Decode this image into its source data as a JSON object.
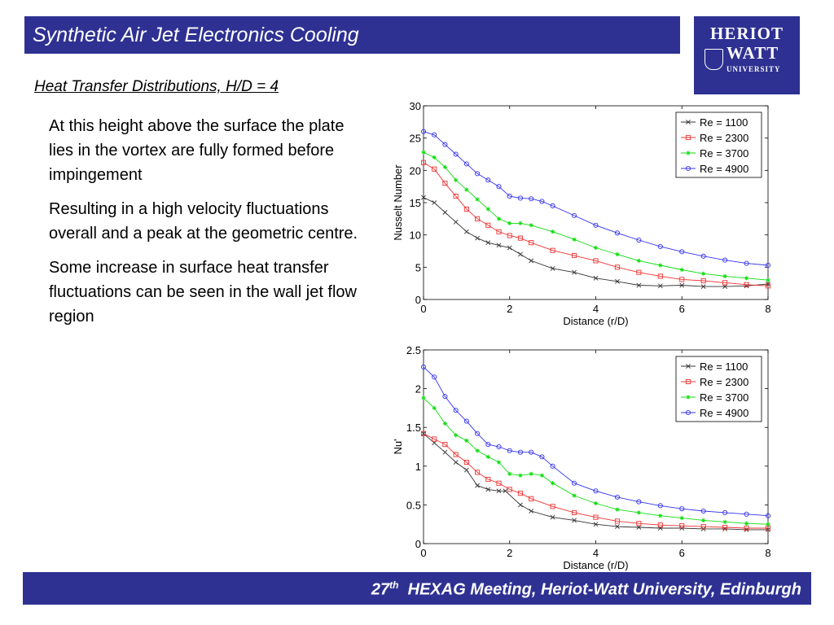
{
  "header": {
    "title": "Synthetic Air Jet Electronics Cooling"
  },
  "logo": {
    "line1": "HERIOT",
    "line2": "WATT",
    "line3": "UNIVERSITY"
  },
  "subtitle": "Heat Transfer Distributions, H/D = 4",
  "body": {
    "paragraphs": [
      "At this height above the surface the plate lies in the vortex are fully formed before impingement",
      "Resulting in a high velocity fluctuations overall and a peak at the geometric centre.",
      "Some increase in surface heat transfer fluctuations can be seen in the wall jet flow region"
    ]
  },
  "footer": {
    "ordinal": "27",
    "suffix": "th",
    "text": "HEXAG Meeting, Heriot-Watt University, Edinburgh"
  },
  "colors": {
    "brand": "#2e3192",
    "re1100": "#333333",
    "re2300": "#ee3333",
    "re3700": "#11dd11",
    "re4900": "#3333ee"
  },
  "chart_data": [
    {
      "type": "line",
      "xlabel": "Distance (r/D)",
      "ylabel": "Nusselt Number",
      "xlim": [
        0,
        8
      ],
      "ylim": [
        0,
        30
      ],
      "xticks": [
        0,
        2,
        4,
        6,
        8
      ],
      "yticks": [
        0,
        5,
        10,
        15,
        20,
        25,
        30
      ],
      "legend_position": "top-right",
      "series": [
        {
          "name": "Re = 1100",
          "marker": "x",
          "color": "#333333",
          "x": [
            0,
            0.25,
            0.5,
            0.75,
            1.0,
            1.25,
            1.5,
            1.75,
            2.0,
            2.25,
            2.5,
            3.0,
            3.5,
            4.0,
            4.5,
            5.0,
            5.5,
            6.0,
            6.5,
            7.0,
            7.5,
            8.0
          ],
          "y": [
            15.8,
            15.0,
            13.5,
            12.0,
            10.5,
            9.5,
            8.8,
            8.4,
            8.0,
            7.0,
            6.0,
            4.8,
            4.2,
            3.3,
            2.8,
            2.2,
            2.1,
            2.2,
            2.0,
            2.0,
            2.1,
            2.4
          ]
        },
        {
          "name": "Re = 2300",
          "marker": "square",
          "color": "#ee3333",
          "x": [
            0,
            0.25,
            0.5,
            0.75,
            1.0,
            1.25,
            1.5,
            1.75,
            2.0,
            2.25,
            2.5,
            3.0,
            3.5,
            4.0,
            4.5,
            5.0,
            5.5,
            6.0,
            6.5,
            7.0,
            7.5,
            8.0
          ],
          "y": [
            21.2,
            20.2,
            18.0,
            16.0,
            14.0,
            12.5,
            11.5,
            10.5,
            9.9,
            9.5,
            8.8,
            7.6,
            6.8,
            6.0,
            5.0,
            4.2,
            3.6,
            3.1,
            2.9,
            2.6,
            2.3,
            2.1
          ]
        },
        {
          "name": "Re = 3700",
          "marker": "star",
          "color": "#11dd11",
          "x": [
            0,
            0.25,
            0.5,
            0.75,
            1.0,
            1.25,
            1.5,
            1.75,
            2.0,
            2.25,
            2.5,
            3.0,
            3.5,
            4.0,
            4.5,
            5.0,
            5.5,
            6.0,
            6.5,
            7.0,
            7.5,
            8.0
          ],
          "y": [
            22.8,
            22.0,
            20.5,
            18.5,
            17.0,
            15.5,
            14.0,
            12.5,
            11.8,
            11.8,
            11.5,
            10.5,
            9.3,
            8.0,
            7.0,
            6.0,
            5.3,
            4.6,
            4.0,
            3.6,
            3.3,
            3.0
          ]
        },
        {
          "name": "Re = 4900",
          "marker": "circle",
          "color": "#3333ee",
          "x": [
            0,
            0.25,
            0.5,
            0.75,
            1.0,
            1.25,
            1.5,
            1.75,
            2.0,
            2.25,
            2.5,
            2.75,
            3.0,
            3.5,
            4.0,
            4.5,
            5.0,
            5.5,
            6.0,
            6.5,
            7.0,
            7.5,
            8.0
          ],
          "y": [
            26.0,
            25.5,
            24.0,
            22.5,
            21.0,
            19.5,
            18.5,
            17.5,
            16.0,
            15.7,
            15.6,
            15.2,
            14.5,
            13.0,
            11.5,
            10.3,
            9.2,
            8.2,
            7.4,
            6.7,
            6.1,
            5.6,
            5.3
          ]
        }
      ]
    },
    {
      "type": "line",
      "xlabel": "Distance (r/D)",
      "ylabel": "Nu'",
      "xlim": [
        0,
        8
      ],
      "ylim": [
        0,
        2.5
      ],
      "xticks": [
        0,
        2,
        4,
        6,
        8
      ],
      "yticks": [
        0,
        0.5,
        1,
        1.5,
        2,
        2.5
      ],
      "legend_position": "top-right",
      "series": [
        {
          "name": "Re = 1100",
          "marker": "x",
          "color": "#333333",
          "x": [
            0,
            0.25,
            0.5,
            0.75,
            1.0,
            1.25,
            1.5,
            1.75,
            1.9,
            2.25,
            2.5,
            3.0,
            3.5,
            4.0,
            4.5,
            5.0,
            5.5,
            6.0,
            6.5,
            7.0,
            7.5,
            8.0
          ],
          "y": [
            1.42,
            1.3,
            1.18,
            1.05,
            0.95,
            0.75,
            0.7,
            0.68,
            0.68,
            0.5,
            0.42,
            0.34,
            0.3,
            0.25,
            0.22,
            0.21,
            0.2,
            0.2,
            0.19,
            0.19,
            0.18,
            0.18
          ]
        },
        {
          "name": "Re = 2300",
          "marker": "square",
          "color": "#ee3333",
          "x": [
            0,
            0.25,
            0.5,
            0.75,
            1.0,
            1.25,
            1.5,
            1.75,
            2.0,
            2.25,
            2.5,
            3.0,
            3.5,
            4.0,
            4.5,
            5.0,
            5.5,
            6.0,
            6.5,
            7.0,
            7.5,
            8.0
          ],
          "y": [
            1.42,
            1.35,
            1.28,
            1.15,
            1.05,
            0.92,
            0.83,
            0.78,
            0.7,
            0.65,
            0.58,
            0.48,
            0.4,
            0.34,
            0.29,
            0.26,
            0.24,
            0.23,
            0.22,
            0.21,
            0.2,
            0.2
          ]
        },
        {
          "name": "Re = 3700",
          "marker": "star",
          "color": "#11dd11",
          "x": [
            0,
            0.25,
            0.5,
            0.75,
            1.0,
            1.25,
            1.5,
            1.75,
            2.0,
            2.25,
            2.5,
            2.75,
            3.0,
            3.5,
            4.0,
            4.5,
            5.0,
            5.5,
            6.0,
            6.5,
            7.0,
            7.5,
            8.0
          ],
          "y": [
            1.88,
            1.75,
            1.55,
            1.4,
            1.33,
            1.2,
            1.12,
            1.05,
            0.9,
            0.88,
            0.9,
            0.88,
            0.78,
            0.62,
            0.52,
            0.44,
            0.4,
            0.36,
            0.33,
            0.3,
            0.28,
            0.26,
            0.25
          ]
        },
        {
          "name": "Re = 4900",
          "marker": "circle",
          "color": "#3333ee",
          "x": [
            0,
            0.25,
            0.5,
            0.75,
            1.0,
            1.25,
            1.5,
            1.75,
            2.0,
            2.25,
            2.5,
            2.75,
            3.0,
            3.5,
            4.0,
            4.5,
            5.0,
            5.5,
            6.0,
            6.5,
            7.0,
            7.5,
            8.0
          ],
          "y": [
            2.28,
            2.15,
            1.9,
            1.72,
            1.58,
            1.42,
            1.28,
            1.25,
            1.2,
            1.18,
            1.18,
            1.12,
            1.0,
            0.78,
            0.68,
            0.6,
            0.54,
            0.49,
            0.45,
            0.42,
            0.4,
            0.38,
            0.36
          ]
        }
      ]
    }
  ]
}
